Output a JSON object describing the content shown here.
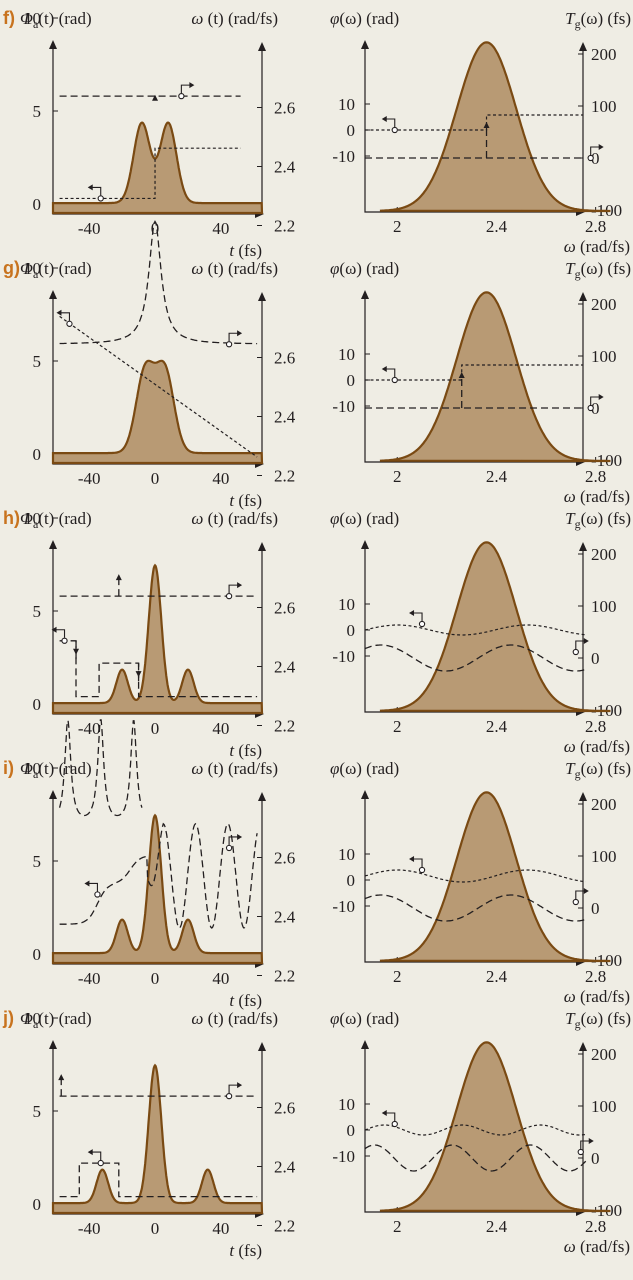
{
  "axis_labels": {
    "phase_time": [
      "Φ",
      "a",
      "(t) (rad)"
    ],
    "omega_time": [
      "ω",
      " (t) (rad/fs)"
    ],
    "time_x": [
      "t",
      " (fs)"
    ],
    "phase_freq": [
      "φ",
      "(ω) (rad)"
    ],
    "delay_freq": [
      "T",
      "g",
      "(ω) (fs)"
    ],
    "omega_x": [
      "ω",
      " (rad/fs)"
    ]
  },
  "colors": {
    "background": "#efede4",
    "fill": "#b89a74",
    "stroke": "#7a4a13",
    "panel_letter": "#c8731e",
    "lines": "#231f20"
  },
  "chart_data": [
    {
      "panel": "f)",
      "time": {
        "type": "area",
        "x_ticks": [
          -40,
          0,
          40
        ],
        "y_left_ticks": [
          0,
          5,
          10
        ],
        "y_right_ticks": [
          2.2,
          2.4,
          2.6
        ],
        "intensity_peaks": [
          {
            "t": -8,
            "height": 4.3,
            "width": 5
          },
          {
            "t": 8,
            "height": 4.3,
            "width": 5
          }
        ],
        "phase_dashed": [
          [
            -58,
            5.8
          ],
          [
            0,
            5.8
          ],
          [
            0,
            5.8
          ],
          [
            52,
            5.8
          ]
        ],
        "omega_dotted": [
          [
            -58,
            2.11
          ],
          [
            0,
            2.11
          ],
          [
            0,
            2.29
          ],
          [
            52,
            2.29
          ]
        ]
      },
      "freq": {
        "x_ticks": [
          2,
          2.4,
          2.8
        ],
        "y_left_ticks": [
          -10,
          0,
          10
        ],
        "y_right_ticks": [
          -100,
          0,
          100,
          200
        ],
        "spectrum": {
          "center": 2.36,
          "width": 0.12,
          "peak": 12.4
        },
        "phase_dotted": [
          [
            1.9,
            0
          ],
          [
            2.36,
            0
          ],
          [
            2.36,
            2.9
          ],
          [
            2.9,
            2.9
          ]
        ],
        "delay_dashed": [
          [
            1.9,
            2.5
          ],
          [
            2.36,
            2.5
          ],
          [
            2.9,
            2.5
          ]
        ]
      }
    },
    {
      "panel": "g)",
      "time": {
        "type": "area",
        "x_ticks": [
          -40,
          0,
          40
        ],
        "y_left_ticks": [
          0,
          5,
          10
        ],
        "y_right_ticks": [
          2.2,
          2.4,
          2.6
        ],
        "intensity_peaks": [
          {
            "t": -6,
            "height": 4.4,
            "width": 5.5
          },
          {
            "t": 6,
            "height": 4.4,
            "width": 5.5
          }
        ],
        "phase_dashed": "chirped: 5.9 baseline rising to 12.3 at t=0",
        "omega_dotted": [
          [
            -58,
            2.38
          ],
          [
            62,
            2.05
          ]
        ]
      },
      "freq": {
        "x_ticks": [
          2,
          2.4,
          2.8
        ],
        "y_left_ticks": [
          -10,
          0,
          10
        ],
        "y_right_ticks": [
          -100,
          0,
          100,
          200
        ],
        "spectrum": {
          "center": 2.36,
          "width": 0.12,
          "peak": 12.4
        },
        "phase_dotted": [
          [
            1.9,
            0
          ],
          [
            2.26,
            0
          ],
          [
            2.26,
            2.9
          ],
          [
            2.9,
            2.9
          ]
        ],
        "delay_dashed": [
          [
            1.9,
            2.5
          ],
          [
            2.9,
            2.5
          ]
        ]
      }
    },
    {
      "panel": "h)",
      "time": {
        "type": "area",
        "x_ticks": [
          -40,
          0,
          40
        ],
        "y_left_ticks": [
          0,
          5,
          10
        ],
        "y_right_ticks": [
          2.2,
          2.4,
          2.6
        ],
        "intensity_peaks": [
          {
            "t": -20,
            "height": 1.8,
            "width": 3.5
          },
          {
            "t": 0,
            "height": 7.4,
            "width": 3.8
          },
          {
            "t": 20,
            "height": 1.8,
            "width": 3.5
          }
        ],
        "phase_dashed": [
          [
            -58,
            5.8
          ],
          [
            62,
            5.8
          ]
        ],
        "omega_dotted": "step sequence between 2.10 and 2.26"
      },
      "freq": {
        "x_ticks": [
          2,
          2.4,
          2.8
        ],
        "y_left_ticks": [
          -10,
          0,
          10
        ],
        "y_right_ticks": [
          -100,
          0,
          100,
          200
        ],
        "spectrum": {
          "center": 2.36,
          "width": 0.12,
          "peak": 12.4
        },
        "phase_dotted": "sinusoid around 0, amplitude 1.3",
        "delay_dashed": "sinusoid around 10 fs, amplitude 30 fs"
      }
    },
    {
      "panel": "i)",
      "time": {
        "type": "area",
        "x_ticks": [
          -40,
          0,
          40
        ],
        "y_left_ticks": [
          0,
          5,
          10
        ],
        "y_right_ticks": [
          2.2,
          2.4,
          2.6
        ],
        "intensity_peaks": [
          {
            "t": -20,
            "height": 1.8,
            "width": 3.5
          },
          {
            "t": 0,
            "height": 7.4,
            "width": 3.8
          },
          {
            "t": 20,
            "height": 1.8,
            "width": 3.5
          }
        ],
        "phase_dashed": "oscillating Lorentzian spikes, period ~20 fs",
        "omega_dotted": "staircase-like oscillation between 1.6 and 7"
      },
      "freq": {
        "x_ticks": [
          2,
          2.4,
          2.8
        ],
        "y_left_ticks": [
          -10,
          0,
          10
        ],
        "y_right_ticks": [
          -100,
          0,
          100,
          200
        ],
        "spectrum": {
          "center": 2.36,
          "width": 0.12,
          "peak": 12.4
        },
        "phase_dotted": "sinusoid around 1.5, amplitude 1.5",
        "delay_dashed": "sinusoid around 10 fs, amplitude 32 fs"
      }
    },
    {
      "panel": "j)",
      "time": {
        "type": "area",
        "x_ticks": [
          -40,
          0,
          40
        ],
        "y_left_ticks": [
          0,
          5,
          10
        ],
        "y_right_ticks": [
          2.2,
          2.4,
          2.6
        ],
        "intensity_peaks": [
          {
            "t": -32,
            "height": 1.8,
            "width": 3.5
          },
          {
            "t": 0,
            "height": 7.4,
            "width": 3.8
          },
          {
            "t": 32,
            "height": 1.8,
            "width": 3.5
          }
        ],
        "phase_dashed": [
          [
            -58,
            5.8
          ],
          [
            62,
            5.8
          ]
        ],
        "omega_dotted": "step sequence between 2.10 and 2.26"
      },
      "freq": {
        "x_ticks": [
          2,
          2.4,
          2.8
        ],
        "y_left_ticks": [
          -10,
          0,
          10
        ],
        "y_right_ticks": [
          -100,
          0,
          100,
          200
        ],
        "spectrum": {
          "center": 2.36,
          "width": 0.12,
          "peak": 12.4
        },
        "phase_dotted": "sinusoid around 1.8, amplitude 1.7, faster",
        "delay_dashed": "sinusoid around 10 fs, amplitude 32 fs, faster"
      }
    }
  ]
}
